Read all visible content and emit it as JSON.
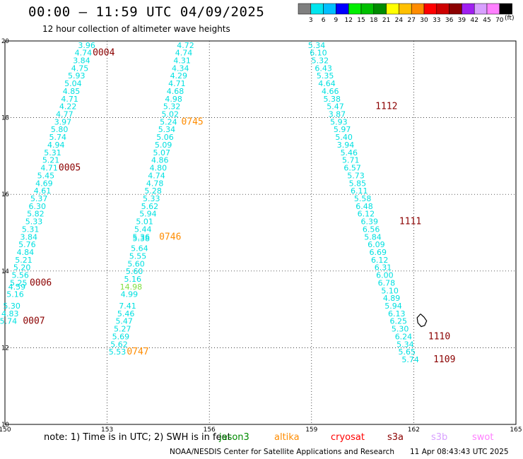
{
  "header": {
    "title": "00:00 – 11:59 UTC 04/09/2025",
    "subtitle": "12 hour collection of altimeter wave heights"
  },
  "scale": {
    "unit": "(ft)",
    "bins": [
      {
        "label": "3",
        "color": "#7f7f7f"
      },
      {
        "label": "6",
        "color": "#00e5ee"
      },
      {
        "label": "9",
        "color": "#00bfff"
      },
      {
        "label": "12",
        "color": "#0000ff"
      },
      {
        "label": "15",
        "color": "#00ee00"
      },
      {
        "label": "18",
        "color": "#00c000"
      },
      {
        "label": "21",
        "color": "#008b00"
      },
      {
        "label": "24",
        "color": "#ffff00"
      },
      {
        "label": "27",
        "color": "#ffc000"
      },
      {
        "label": "30",
        "color": "#ff8c00"
      },
      {
        "label": "33",
        "color": "#ff0000"
      },
      {
        "label": "36",
        "color": "#cd0000"
      },
      {
        "label": "39",
        "color": "#8b0000"
      },
      {
        "label": "42",
        "color": "#a020f0"
      },
      {
        "label": "45",
        "color": "#d8a0ff"
      },
      {
        "label": "70",
        "color": "#ff80ff"
      },
      {
        "label": "",
        "color": "#000000"
      }
    ]
  },
  "footer": {
    "note": "note:  1) Time is in UTC;  2) SWH is in feet",
    "credit": "NOAA/NESDIS Center for Satellite Applications and Research",
    "timestamp": "11 Apr 08:43:43 UTC 2025",
    "missions": [
      {
        "label": "jason3",
        "color": "#008b00"
      },
      {
        "label": "altika",
        "color": "#ff8c00"
      },
      {
        "label": "cryosat",
        "color": "#ff0000"
      },
      {
        "label": "s3a",
        "color": "#8b0000"
      },
      {
        "label": "s3b",
        "color": "#d8a0ff"
      },
      {
        "label": "swot",
        "color": "#ff80ff"
      }
    ]
  },
  "chart_data": {
    "type": "scatter",
    "title": "00:00 – 11:59 UTC 04/09/2025",
    "xlim": [
      150,
      165
    ],
    "ylim": [
      10,
      20
    ],
    "xticks": [
      "150",
      "153",
      "156",
      "159",
      "162",
      "165"
    ],
    "yticks": [
      "10",
      "12",
      "14",
      "16",
      "18",
      "20"
    ],
    "grid": true,
    "colors": {
      "cyan": "#00e0e0",
      "green": "#7fdf3f",
      "darkred": "#8b0000",
      "orange": "#ff8c00",
      "black": "#000000"
    },
    "tracks": [
      {
        "name": "track-1",
        "color": "cyan",
        "points": [
          {
            "x": 152.4,
            "y": 19.82,
            "v": "3.96"
          },
          {
            "x": 152.3,
            "y": 19.62,
            "v": "4.74"
          },
          {
            "x": 152.25,
            "y": 19.42,
            "v": "3.84"
          },
          {
            "x": 152.2,
            "y": 19.22,
            "v": "4.75"
          },
          {
            "x": 152.1,
            "y": 19.02,
            "v": "5.93"
          },
          {
            "x": 152.0,
            "y": 18.82,
            "v": "5.04"
          },
          {
            "x": 151.95,
            "y": 18.62,
            "v": "4.85"
          },
          {
            "x": 151.9,
            "y": 18.42,
            "v": "4.71"
          },
          {
            "x": 151.85,
            "y": 18.22,
            "v": "4.22"
          },
          {
            "x": 151.75,
            "y": 18.02,
            "v": "4.77"
          },
          {
            "x": 151.7,
            "y": 17.82,
            "v": "3.97"
          },
          {
            "x": 151.6,
            "y": 17.62,
            "v": "5.80"
          },
          {
            "x": 151.55,
            "y": 17.42,
            "v": "5.74"
          },
          {
            "x": 151.5,
            "y": 17.22,
            "v": "4.94"
          },
          {
            "x": 151.4,
            "y": 17.02,
            "v": "5.31"
          },
          {
            "x": 151.35,
            "y": 16.82,
            "v": "5.21"
          },
          {
            "x": 151.3,
            "y": 16.62,
            "v": "4.71"
          },
          {
            "x": 151.2,
            "y": 16.42,
            "v": "5.45"
          },
          {
            "x": 151.15,
            "y": 16.22,
            "v": "4.69"
          },
          {
            "x": 151.1,
            "y": 16.02,
            "v": "4.61"
          },
          {
            "x": 151.0,
            "y": 15.82,
            "v": "5.37"
          },
          {
            "x": 150.95,
            "y": 15.62,
            "v": "6.30"
          },
          {
            "x": 150.9,
            "y": 15.42,
            "v": "5.82"
          },
          {
            "x": 150.85,
            "y": 15.22,
            "v": "5.33"
          },
          {
            "x": 150.75,
            "y": 15.02,
            "v": "5.31"
          },
          {
            "x": 150.7,
            "y": 14.82,
            "v": "3.84"
          },
          {
            "x": 150.65,
            "y": 14.62,
            "v": "5.76"
          },
          {
            "x": 150.6,
            "y": 14.42,
            "v": "4.84"
          },
          {
            "x": 150.55,
            "y": 14.22,
            "v": "5.21"
          },
          {
            "x": 150.5,
            "y": 14.02,
            "v": "5.20"
          },
          {
            "x": 150.45,
            "y": 13.82,
            "v": "5.56"
          },
          {
            "x": 150.4,
            "y": 13.62,
            "v": "5.25"
          },
          {
            "x": 150.35,
            "y": 13.52,
            "v": "4.59"
          },
          {
            "x": 150.3,
            "y": 13.32,
            "v": "5.16"
          },
          {
            "x": 150.2,
            "y": 13.02,
            "v": "5.30"
          },
          {
            "x": 150.15,
            "y": 12.82,
            "v": "4.83"
          },
          {
            "x": 150.1,
            "y": 12.62,
            "v": "5.74"
          }
        ]
      },
      {
        "name": "track-2",
        "color": "cyan",
        "points": [
          {
            "x": 155.3,
            "y": 19.82,
            "v": "4.72"
          },
          {
            "x": 155.25,
            "y": 19.62,
            "v": "4.74"
          },
          {
            "x": 155.2,
            "y": 19.42,
            "v": "4.31"
          },
          {
            "x": 155.15,
            "y": 19.22,
            "v": "4.34"
          },
          {
            "x": 155.1,
            "y": 19.02,
            "v": "4.29"
          },
          {
            "x": 155.05,
            "y": 18.82,
            "v": "4.71"
          },
          {
            "x": 155.0,
            "y": 18.62,
            "v": "4.68"
          },
          {
            "x": 154.95,
            "y": 18.42,
            "v": "4.98"
          },
          {
            "x": 154.9,
            "y": 18.22,
            "v": "5.32"
          },
          {
            "x": 154.85,
            "y": 18.02,
            "v": "5.02"
          },
          {
            "x": 154.8,
            "y": 17.82,
            "v": "5.24"
          },
          {
            "x": 154.75,
            "y": 17.62,
            "v": "5.34"
          },
          {
            "x": 154.7,
            "y": 17.42,
            "v": "5.06"
          },
          {
            "x": 154.65,
            "y": 17.22,
            "v": "5.09"
          },
          {
            "x": 154.6,
            "y": 17.02,
            "v": "5.07"
          },
          {
            "x": 154.55,
            "y": 16.82,
            "v": "4.86"
          },
          {
            "x": 154.5,
            "y": 16.62,
            "v": "4.80"
          },
          {
            "x": 154.45,
            "y": 16.42,
            "v": "4.74"
          },
          {
            "x": 154.4,
            "y": 16.22,
            "v": "4.78"
          },
          {
            "x": 154.35,
            "y": 16.02,
            "v": "5.28"
          },
          {
            "x": 154.3,
            "y": 15.82,
            "v": "5.33"
          },
          {
            "x": 154.25,
            "y": 15.62,
            "v": "5.62"
          },
          {
            "x": 154.2,
            "y": 15.42,
            "v": "5.94"
          },
          {
            "x": 154.1,
            "y": 15.22,
            "v": "5.01"
          },
          {
            "x": 154.05,
            "y": 15.02,
            "v": "5.44"
          },
          {
            "x": 154.0,
            "y": 14.82,
            "v": "5.36"
          },
          {
            "x": 154.0,
            "y": 14.78,
            "v": "5.38"
          },
          {
            "x": 153.95,
            "y": 14.52,
            "v": "5.64"
          },
          {
            "x": 153.9,
            "y": 14.32,
            "v": "5.55"
          },
          {
            "x": 153.85,
            "y": 14.12,
            "v": "5.60"
          },
          {
            "x": 153.8,
            "y": 13.92,
            "v": "5.60"
          },
          {
            "x": 153.75,
            "y": 13.72,
            "v": "5.16"
          },
          {
            "x": 153.7,
            "y": 13.52,
            "v": "14.98",
            "color": "green"
          },
          {
            "x": 153.65,
            "y": 13.32,
            "v": "4.99"
          },
          {
            "x": 153.6,
            "y": 13.02,
            "v": "7.41"
          },
          {
            "x": 153.55,
            "y": 12.82,
            "v": "5.46"
          },
          {
            "x": 153.5,
            "y": 12.62,
            "v": "5.47"
          },
          {
            "x": 153.45,
            "y": 12.42,
            "v": "5.27"
          },
          {
            "x": 153.4,
            "y": 12.22,
            "v": "5.69"
          },
          {
            "x": 153.35,
            "y": 12.02,
            "v": "5.62"
          },
          {
            "x": 153.3,
            "y": 11.82,
            "v": "5.53"
          }
        ]
      },
      {
        "name": "track-3",
        "color": "cyan",
        "points": [
          {
            "x": 159.15,
            "y": 19.82,
            "v": "5.34"
          },
          {
            "x": 159.2,
            "y": 19.62,
            "v": "6.10"
          },
          {
            "x": 159.25,
            "y": 19.42,
            "v": "5.32"
          },
          {
            "x": 159.35,
            "y": 19.22,
            "v": "6.43"
          },
          {
            "x": 159.4,
            "y": 19.02,
            "v": "5.35"
          },
          {
            "x": 159.45,
            "y": 18.82,
            "v": "4.64"
          },
          {
            "x": 159.55,
            "y": 18.62,
            "v": "4.66"
          },
          {
            "x": 159.6,
            "y": 18.42,
            "v": "5.38"
          },
          {
            "x": 159.7,
            "y": 18.22,
            "v": "5.47"
          },
          {
            "x": 159.75,
            "y": 18.02,
            "v": "3.87"
          },
          {
            "x": 159.8,
            "y": 17.82,
            "v": "5.93"
          },
          {
            "x": 159.9,
            "y": 17.62,
            "v": "5.97"
          },
          {
            "x": 159.95,
            "y": 17.42,
            "v": "5.40"
          },
          {
            "x": 160.0,
            "y": 17.22,
            "v": "3.94"
          },
          {
            "x": 160.1,
            "y": 17.02,
            "v": "5.46"
          },
          {
            "x": 160.15,
            "y": 16.82,
            "v": "5.71"
          },
          {
            "x": 160.2,
            "y": 16.62,
            "v": "6.57"
          },
          {
            "x": 160.3,
            "y": 16.42,
            "v": "5.73"
          },
          {
            "x": 160.35,
            "y": 16.22,
            "v": "5.85"
          },
          {
            "x": 160.4,
            "y": 16.02,
            "v": "6.11"
          },
          {
            "x": 160.5,
            "y": 15.82,
            "v": "5.58"
          },
          {
            "x": 160.55,
            "y": 15.62,
            "v": "6.48"
          },
          {
            "x": 160.6,
            "y": 15.42,
            "v": "6.12"
          },
          {
            "x": 160.7,
            "y": 15.22,
            "v": "6.39"
          },
          {
            "x": 160.75,
            "y": 15.02,
            "v": "6.56"
          },
          {
            "x": 160.8,
            "y": 14.82,
            "v": "5.84"
          },
          {
            "x": 160.9,
            "y": 14.62,
            "v": "6.09"
          },
          {
            "x": 160.95,
            "y": 14.42,
            "v": "6.69"
          },
          {
            "x": 161.0,
            "y": 14.22,
            "v": "6.12"
          },
          {
            "x": 161.1,
            "y": 14.02,
            "v": "6.31"
          },
          {
            "x": 161.15,
            "y": 13.82,
            "v": "6.00"
          },
          {
            "x": 161.2,
            "y": 13.62,
            "v": "6.78"
          },
          {
            "x": 161.3,
            "y": 13.42,
            "v": "5.10"
          },
          {
            "x": 161.35,
            "y": 13.22,
            "v": "4.89"
          },
          {
            "x": 161.4,
            "y": 13.02,
            "v": "5.94"
          },
          {
            "x": 161.5,
            "y": 12.82,
            "v": "6.13"
          },
          {
            "x": 161.55,
            "y": 12.62,
            "v": "6.25"
          },
          {
            "x": 161.6,
            "y": 12.42,
            "v": "5.30"
          },
          {
            "x": 161.7,
            "y": 12.22,
            "v": "6.24"
          },
          {
            "x": 161.75,
            "y": 12.02,
            "v": "5.34"
          },
          {
            "x": 161.8,
            "y": 11.82,
            "v": "5.65"
          },
          {
            "x": 161.9,
            "y": 11.62,
            "v": "5.74"
          }
        ]
      }
    ],
    "time_labels": [
      {
        "x": 152.9,
        "y": 19.62,
        "text": "0004",
        "color": "darkred"
      },
      {
        "x": 151.9,
        "y": 16.62,
        "text": "0005",
        "color": "darkred"
      },
      {
        "x": 151.05,
        "y": 13.62,
        "text": "0006",
        "color": "darkred"
      },
      {
        "x": 150.85,
        "y": 12.62,
        "text": "0007",
        "color": "darkred"
      },
      {
        "x": 155.5,
        "y": 17.82,
        "text": "0745",
        "color": "orange"
      },
      {
        "x": 154.85,
        "y": 14.82,
        "text": "0746",
        "color": "orange"
      },
      {
        "x": 153.9,
        "y": 11.82,
        "text": "0747",
        "color": "orange"
      },
      {
        "x": 161.2,
        "y": 18.22,
        "text": "1112",
        "color": "darkred"
      },
      {
        "x": 161.9,
        "y": 15.22,
        "text": "1111",
        "color": "darkred"
      },
      {
        "x": 162.75,
        "y": 12.22,
        "text": "1110",
        "color": "darkred"
      },
      {
        "x": 162.9,
        "y": 11.62,
        "text": "1109",
        "color": "darkred"
      }
    ],
    "land_outline": {
      "color": "black",
      "points": [
        [
          162.2,
          12.88
        ],
        [
          162.3,
          12.8
        ],
        [
          162.38,
          12.7
        ],
        [
          162.32,
          12.58
        ],
        [
          162.22,
          12.55
        ],
        [
          162.12,
          12.65
        ],
        [
          162.1,
          12.78
        ],
        [
          162.2,
          12.88
        ]
      ]
    }
  }
}
